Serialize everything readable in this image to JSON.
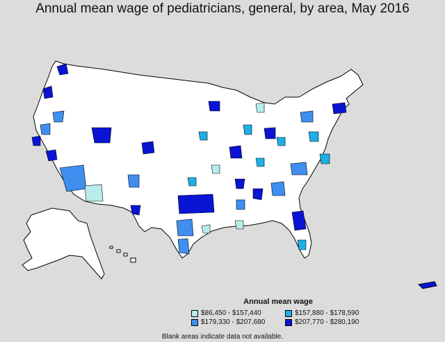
{
  "title": "Annual mean wage of pediatricians, general, by area, May 2016",
  "legend": {
    "title": "Annual mean wage",
    "items": [
      {
        "label": "$86,450 - $157,440",
        "color": "#b8ecec"
      },
      {
        "label": "$157,880 - $178,590",
        "color": "#1cb0e6"
      },
      {
        "label": "$179,330 - $207,680",
        "color": "#3f8ef0"
      },
      {
        "label": "$207,770 - $280,190",
        "color": "#0a14d4"
      }
    ]
  },
  "note": "Blank areas indicate data not available.",
  "colors": {
    "background": "#dcdcdc",
    "land": "#ffffff",
    "border": "#000000"
  }
}
